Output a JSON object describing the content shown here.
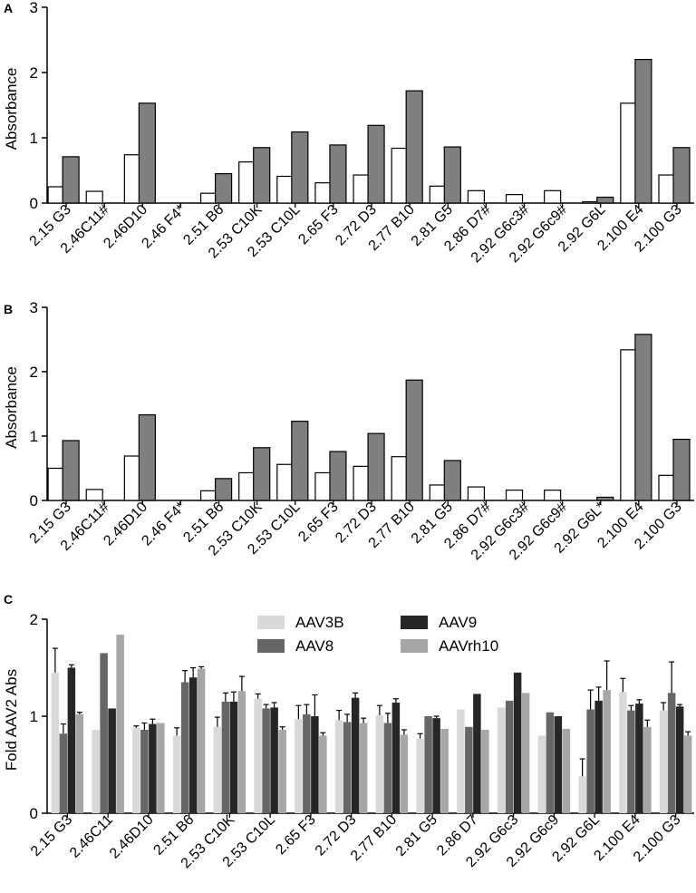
{
  "colors": {
    "axis": "#000000",
    "white_bar": "#ffffff",
    "gray_bar": "#7f7f7f",
    "aav3b": "#d9d9d9",
    "aav8": "#666666",
    "aav9": "#262626",
    "aavrh10": "#a6a6a6"
  },
  "chart_data": [
    {
      "panel_label": "A",
      "type": "bar",
      "ylabel": "Absorbance",
      "ylim": [
        0,
        3
      ],
      "yticks": [
        "0",
        "1",
        "2",
        "3"
      ],
      "categories": [
        "2.15 G3",
        "2.46C11#",
        "2.46D10",
        "2.46 F4*",
        "2.51 B6",
        "2.53 C10K",
        "2.53 C10L",
        "2.65 F3",
        "2.72 D3",
        "2.77 B10",
        "2.81 G5",
        "2.86 D7#",
        "2.92 G6c3#",
        "2.92 G6c9#",
        "2.92 G6L",
        "2.100 E4",
        "2.100 G3"
      ],
      "series": [
        {
          "name": "white",
          "values": [
            0.25,
            0.18,
            0.74,
            0.0,
            0.15,
            0.63,
            0.41,
            0.31,
            0.43,
            0.84,
            0.26,
            0.19,
            0.13,
            0.19,
            0.02,
            1.53,
            0.43
          ]
        },
        {
          "name": "gray",
          "values": [
            0.71,
            0.0,
            1.53,
            0.0,
            0.45,
            0.85,
            1.09,
            0.89,
            1.19,
            1.72,
            0.86,
            0.0,
            0.0,
            0.0,
            0.09,
            2.2,
            0.85
          ]
        }
      ]
    },
    {
      "panel_label": "B",
      "type": "bar",
      "ylabel": "Absorbance",
      "ylim": [
        0,
        3
      ],
      "yticks": [
        "0",
        "1",
        "2",
        "3"
      ],
      "categories": [
        "2.15 G3",
        "2.46C11#",
        "2.46D10",
        "2.46 F4*",
        "2.51 B6",
        "2.53 C10K",
        "2.53 C10L",
        "2.65 F3",
        "2.72 D3",
        "2.77 B10",
        "2.81 G5",
        "2.86 D7#",
        "2.92 G6c3#",
        "2.92 G6c9#",
        "2.92 G6L*",
        "2.100 E4",
        "2.100 G3"
      ],
      "series": [
        {
          "name": "white",
          "values": [
            0.5,
            0.17,
            0.69,
            0.0,
            0.15,
            0.43,
            0.56,
            0.43,
            0.53,
            0.68,
            0.24,
            0.21,
            0.16,
            0.16,
            0.0,
            2.34,
            0.39
          ]
        },
        {
          "name": "gray",
          "values": [
            0.93,
            0.0,
            1.33,
            0.0,
            0.34,
            0.82,
            1.23,
            0.76,
            1.04,
            1.87,
            0.62,
            0.0,
            0.0,
            0.0,
            0.05,
            2.58,
            0.95
          ]
        }
      ]
    },
    {
      "panel_label": "C",
      "type": "bar",
      "ylabel": "Fold  AAV2 Abs",
      "ylim": [
        0,
        2
      ],
      "yticks": [
        "0",
        "1",
        "2"
      ],
      "categories": [
        "2.15 G3",
        "2.46C11",
        "2.46D10",
        "2.51 B6",
        "2.53 C10K",
        "2.53 C10L",
        "2.65 F3",
        "2.72 D3",
        "2.77 B10",
        "2.81 G5",
        "2.86 D7",
        "2.92 G6c3",
        "2.92 G6c9",
        "2.92 G6L",
        "2.100 E4",
        "2.100 G3"
      ],
      "legend": [
        "AAV3B",
        "AAV8",
        "AAV9",
        "AAVrh10"
      ],
      "series": [
        {
          "name": "AAV3B",
          "values": [
            1.45,
            0.86,
            0.88,
            0.8,
            0.89,
            1.18,
            0.97,
            0.96,
            1.01,
            0.77,
            1.07,
            1.09,
            0.8,
            0.38,
            1.25,
            1.06
          ],
          "errors": [
            0.25,
            0.0,
            0.02,
            0.08,
            0.1,
            0.05,
            0.14,
            0.1,
            0.1,
            0.05,
            0.0,
            0.0,
            0.0,
            0.18,
            0.14,
            0.08
          ]
        },
        {
          "name": "AAV8",
          "values": [
            0.82,
            1.65,
            0.86,
            1.35,
            1.15,
            1.08,
            1.02,
            0.94,
            0.93,
            1.0,
            0.89,
            1.16,
            1.04,
            1.07,
            1.06,
            1.24
          ],
          "errors": [
            0.1,
            0.0,
            0.07,
            0.12,
            0.09,
            0.04,
            0.1,
            0.08,
            0.1,
            0.0,
            0.0,
            0.0,
            0.0,
            0.2,
            0.05,
            0.32
          ]
        },
        {
          "name": "AAV9",
          "values": [
            1.5,
            1.08,
            0.92,
            1.4,
            1.15,
            1.09,
            1.0,
            1.19,
            1.14,
            0.98,
            1.23,
            1.45,
            1.0,
            1.16,
            1.13,
            1.1
          ],
          "errors": [
            0.03,
            0.0,
            0.05,
            0.1,
            0.1,
            0.05,
            0.22,
            0.05,
            0.04,
            0.02,
            0.0,
            0.0,
            0.0,
            0.14,
            0.04,
            0.02
          ]
        },
        {
          "name": "AAVrh10",
          "values": [
            1.02,
            1.84,
            0.93,
            1.49,
            1.26,
            0.86,
            0.8,
            0.93,
            0.81,
            0.87,
            0.86,
            1.24,
            0.87,
            1.27,
            0.89,
            0.8
          ],
          "errors": [
            0.02,
            0.0,
            0.0,
            0.02,
            0.15,
            0.03,
            0.03,
            0.05,
            0.05,
            0.0,
            0.0,
            0.0,
            0.0,
            0.3,
            0.07,
            0.04
          ]
        }
      ]
    }
  ]
}
